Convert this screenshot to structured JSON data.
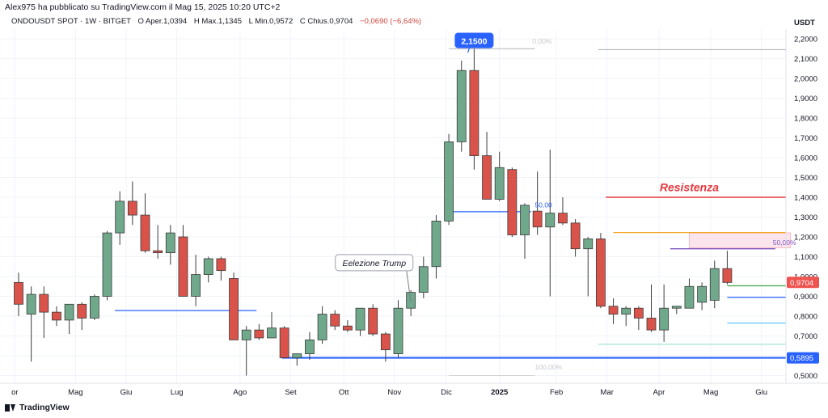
{
  "header": {
    "published_line": "Alex975 ha pubblicato su TradingView.com il Mag 15, 2025 10:20 UTC+2",
    "symbol": "ONDOUSDT SPOT · 1W · BITGET",
    "open_label": "O",
    "open": "Aper.1,0394",
    "high_label": "H",
    "high": "Max.1,1345",
    "low_label": "L",
    "low": "Min.0,9572",
    "close_label": "C",
    "close": "Chius.0,9704",
    "change": "−0,0690 (−6,64%)"
  },
  "unit": "USDT",
  "footer": {
    "brand": "TradingView",
    "logo_icon": "tradingview-logo-icon"
  },
  "chart_data": {
    "type": "candlestick",
    "title": "",
    "ylim": [
      0.46,
      2.26
    ],
    "y_ticks": [
      "2,2000",
      "2,1000",
      "2,0000",
      "1,9000",
      "1,8000",
      "1,7000",
      "1,6000",
      "1,5000",
      "1,4000",
      "1,3000",
      "1,2000",
      "1,1000",
      "1,0000",
      "0,9000",
      "0,8000",
      "0,7000",
      "0,6000",
      "0,5000"
    ],
    "x_labels": [
      {
        "label": "or",
        "week": -0.3
      },
      {
        "label": "Mag",
        "week": 4.5
      },
      {
        "label": "Giu",
        "week": 8.5
      },
      {
        "label": "Lug",
        "week": 12.5
      },
      {
        "label": "Ago",
        "week": 17.5
      },
      {
        "label": "Set",
        "week": 21.5
      },
      {
        "label": "Ott",
        "week": 25.7
      },
      {
        "label": "Nov",
        "week": 29.7
      },
      {
        "label": "Dic",
        "week": 33.8
      },
      {
        "label": "2025",
        "week": 38
      },
      {
        "label": "Feb",
        "week": 42.5
      },
      {
        "label": "Mar",
        "week": 46.5
      },
      {
        "label": "Apr",
        "week": 50.6
      },
      {
        "label": "Mag",
        "week": 54.7
      },
      {
        "label": "Giu",
        "week": 58.7
      }
    ],
    "candles": [
      {
        "o": 0.97,
        "h": 1.02,
        "l": 0.8,
        "c": 0.86
      },
      {
        "o": 0.81,
        "h": 0.95,
        "l": 0.57,
        "c": 0.91
      },
      {
        "o": 0.91,
        "h": 0.95,
        "l": 0.69,
        "c": 0.82
      },
      {
        "o": 0.82,
        "h": 0.85,
        "l": 0.75,
        "c": 0.78
      },
      {
        "o": 0.78,
        "h": 0.86,
        "l": 0.71,
        "c": 0.86
      },
      {
        "o": 0.86,
        "h": 0.87,
        "l": 0.73,
        "c": 0.79
      },
      {
        "o": 0.79,
        "h": 0.91,
        "l": 0.78,
        "c": 0.9
      },
      {
        "o": 0.9,
        "h": 1.23,
        "l": 0.88,
        "c": 1.22
      },
      {
        "o": 1.22,
        "h": 1.43,
        "l": 1.16,
        "c": 1.38
      },
      {
        "o": 1.38,
        "h": 1.48,
        "l": 1.26,
        "c": 1.31
      },
      {
        "o": 1.31,
        "h": 1.42,
        "l": 1.12,
        "c": 1.13
      },
      {
        "o": 1.13,
        "h": 1.26,
        "l": 1.09,
        "c": 1.12
      },
      {
        "o": 1.12,
        "h": 1.26,
        "l": 1.06,
        "c": 1.22
      },
      {
        "o": 1.2,
        "h": 1.26,
        "l": 0.9,
        "c": 0.9
      },
      {
        "o": 0.9,
        "h": 1.11,
        "l": 0.85,
        "c": 1.01
      },
      {
        "o": 1.01,
        "h": 1.1,
        "l": 0.97,
        "c": 1.09
      },
      {
        "o": 1.09,
        "h": 1.1,
        "l": 0.98,
        "c": 1.03
      },
      {
        "o": 0.99,
        "h": 1.02,
        "l": 0.68,
        "c": 0.68
      },
      {
        "o": 0.68,
        "h": 0.75,
        "l": 0.5,
        "c": 0.73
      },
      {
        "o": 0.73,
        "h": 0.76,
        "l": 0.68,
        "c": 0.69
      },
      {
        "o": 0.69,
        "h": 0.82,
        "l": 0.69,
        "c": 0.74
      },
      {
        "o": 0.74,
        "h": 0.75,
        "l": 0.59,
        "c": 0.59
      },
      {
        "o": 0.59,
        "h": 0.61,
        "l": 0.55,
        "c": 0.61
      },
      {
        "o": 0.61,
        "h": 0.72,
        "l": 0.58,
        "c": 0.68
      },
      {
        "o": 0.68,
        "h": 0.85,
        "l": 0.66,
        "c": 0.81
      },
      {
        "o": 0.81,
        "h": 0.83,
        "l": 0.73,
        "c": 0.75
      },
      {
        "o": 0.75,
        "h": 0.78,
        "l": 0.72,
        "c": 0.73
      },
      {
        "o": 0.73,
        "h": 0.84,
        "l": 0.7,
        "c": 0.84
      },
      {
        "o": 0.84,
        "h": 0.86,
        "l": 0.7,
        "c": 0.71
      },
      {
        "o": 0.71,
        "h": 0.72,
        "l": 0.57,
        "c": 0.63
      },
      {
        "o": 0.61,
        "h": 0.88,
        "l": 0.59,
        "c": 0.84
      },
      {
        "o": 0.84,
        "h": 0.93,
        "l": 0.8,
        "c": 0.92
      },
      {
        "o": 0.92,
        "h": 1.1,
        "l": 0.89,
        "c": 1.05
      },
      {
        "o": 1.05,
        "h": 1.31,
        "l": 0.99,
        "c": 1.28
      },
      {
        "o": 1.28,
        "h": 1.72,
        "l": 1.26,
        "c": 1.68
      },
      {
        "o": 1.68,
        "h": 2.09,
        "l": 1.63,
        "c": 2.04
      },
      {
        "o": 2.04,
        "h": 2.15,
        "l": 1.54,
        "c": 1.61
      },
      {
        "o": 1.61,
        "h": 1.73,
        "l": 1.4,
        "c": 1.39
      },
      {
        "o": 1.39,
        "h": 1.63,
        "l": 1.38,
        "c": 1.55
      },
      {
        "o": 1.54,
        "h": 1.55,
        "l": 1.2,
        "c": 1.21
      },
      {
        "o": 1.21,
        "h": 1.37,
        "l": 1.09,
        "c": 1.36
      },
      {
        "o": 1.33,
        "h": 1.53,
        "l": 1.21,
        "c": 1.25
      },
      {
        "o": 1.25,
        "h": 1.64,
        "l": 0.9,
        "c": 1.32
      },
      {
        "o": 1.32,
        "h": 1.4,
        "l": 1.26,
        "c": 1.27
      },
      {
        "o": 1.27,
        "h": 1.29,
        "l": 1.1,
        "c": 1.14
      },
      {
        "o": 1.14,
        "h": 1.2,
        "l": 0.9,
        "c": 1.19
      },
      {
        "o": 1.19,
        "h": 1.22,
        "l": 0.84,
        "c": 0.85
      },
      {
        "o": 0.85,
        "h": 0.89,
        "l": 0.76,
        "c": 0.81
      },
      {
        "o": 0.81,
        "h": 0.85,
        "l": 0.75,
        "c": 0.84
      },
      {
        "o": 0.84,
        "h": 0.85,
        "l": 0.73,
        "c": 0.79
      },
      {
        "o": 0.79,
        "h": 0.96,
        "l": 0.72,
        "c": 0.73
      },
      {
        "o": 0.73,
        "h": 0.96,
        "l": 0.67,
        "c": 0.84
      },
      {
        "o": 0.84,
        "h": 0.85,
        "l": 0.81,
        "c": 0.85
      },
      {
        "o": 0.84,
        "h": 0.99,
        "l": 0.84,
        "c": 0.95
      },
      {
        "o": 0.87,
        "h": 0.97,
        "l": 0.83,
        "c": 0.95
      },
      {
        "o": 0.88,
        "h": 1.08,
        "l": 0.84,
        "c": 1.04
      },
      {
        "o": 1.04,
        "h": 1.13,
        "l": 0.96,
        "c": 0.97
      }
    ],
    "lines": [
      {
        "y": 1.4,
        "from": 46.4,
        "to": 61.2,
        "color": "#e5393f",
        "width": 1.5
      },
      {
        "y": 1.222,
        "from": 47.0,
        "to": 61.2,
        "color": "#f5a623",
        "width": 1.3
      },
      {
        "y": 1.14,
        "from": 51.5,
        "to": 59.8,
        "color": "#7e57c2",
        "width": 1.3
      },
      {
        "y": 0.953,
        "from": 56.0,
        "to": 61.2,
        "color": "#43a047",
        "width": 1.3
      },
      {
        "y": 0.895,
        "from": 56.0,
        "to": 61.2,
        "color": "#2962ff",
        "width": 1.3
      },
      {
        "y": 0.765,
        "from": 56.0,
        "to": 61.2,
        "color": "#4fc3f7",
        "width": 1.1
      },
      {
        "y": 0.658,
        "from": 45.8,
        "to": 61.2,
        "color": "#9be1d3",
        "width": 1.1
      },
      {
        "y": 2.145,
        "from": 45.8,
        "to": 61.2,
        "color": "#b0b3b8",
        "width": 1.1
      },
      {
        "y": 0.828,
        "from": 7.6,
        "to": 18.8,
        "color": "#2962ff",
        "width": 1.3
      },
      {
        "y": 1.327,
        "from": 34.0,
        "to": 40.5,
        "color": "#2962ff",
        "width": 1.3
      },
      {
        "y": 0.5895,
        "from": 20.8,
        "to": 61.2,
        "color": "#2962ff",
        "width": 2.2
      },
      {
        "y": 2.15,
        "from": 34.0,
        "to": 40.8,
        "color": "#b0b3b8",
        "width": 1.0
      },
      {
        "y": 0.5,
        "from": 34.0,
        "to": 40.8,
        "color": "#cfd2d6",
        "width": 1.0
      }
    ],
    "annotations": [
      {
        "text": "Resistenza",
        "week": 53.0,
        "y": 1.43,
        "color": "#e5393f"
      },
      {
        "text": "50,00%",
        "week": 59.6,
        "y": 1.16,
        "color": "#7e57c2"
      },
      {
        "text": "50,00",
        "week": 40.8,
        "y": 1.35,
        "color": "#2962ff"
      },
      {
        "text": "0,00%",
        "week": 40.6,
        "y": 2.175,
        "color": "#c6c9cd"
      },
      {
        "text": "100,00%",
        "week": 40.8,
        "y": 0.53,
        "color": "#c6c9cd"
      }
    ],
    "price_callout": {
      "text": "2,1500",
      "week": 36.0,
      "y": 2.19
    },
    "event_callout": {
      "text": "Eelezione Trump",
      "week": 28.1,
      "y": 1.07,
      "target_week": 31.0,
      "target_y": 0.87
    },
    "pink_zone": {
      "from": 53.0,
      "to": 61.0,
      "y_low": 1.145,
      "y_high": 1.22
    },
    "price_badges": [
      {
        "text": "0,9704",
        "y": 0.9704,
        "color": "#ef5350"
      },
      {
        "text": "0,5895",
        "y": 0.5895,
        "color": "#2962ff"
      }
    ],
    "colors": {
      "up": "#6fa88a",
      "down": "#d9534b",
      "outline": "#3b3b3b",
      "grid": "#f0f3fa"
    }
  }
}
